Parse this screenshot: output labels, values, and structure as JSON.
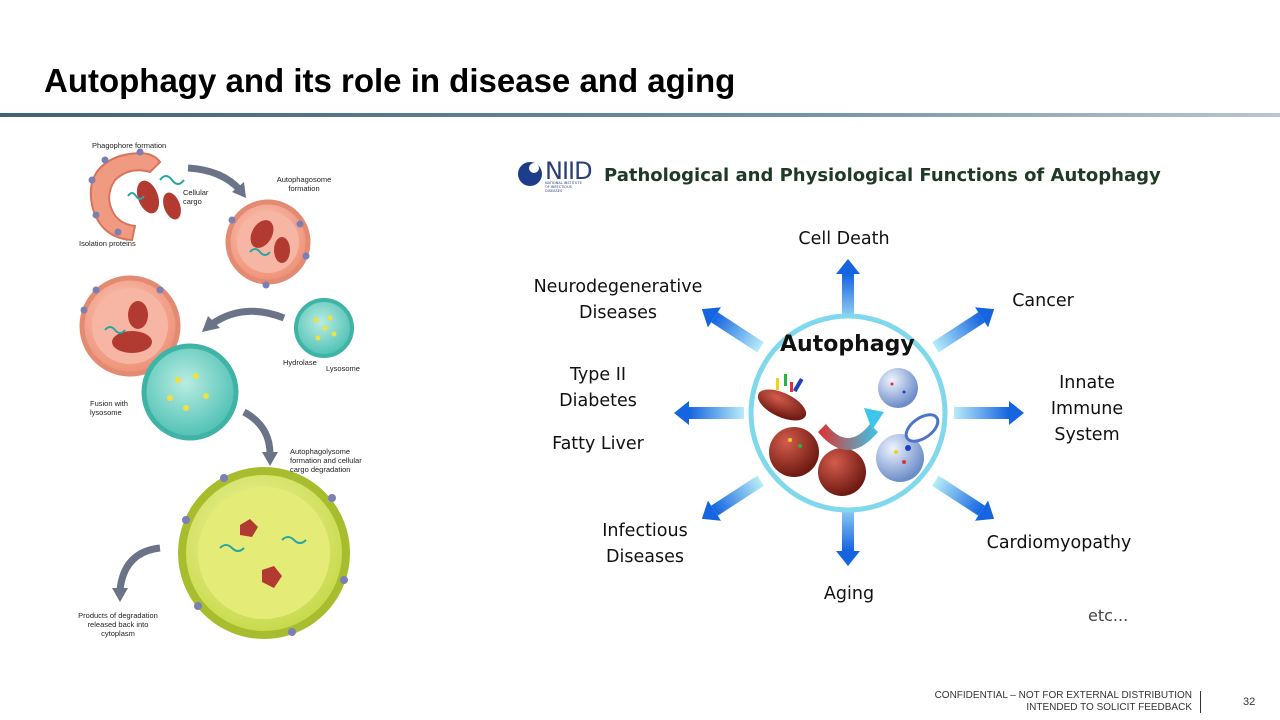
{
  "slide": {
    "title": "Autophagy and its role in disease and aging",
    "page_number": "32",
    "footer": {
      "line1": "CONFIDENTIAL – NOT FOR EXTERNAL DISTRIBUTION",
      "line2": "INTENDED TO SOLICIT FEEDBACK"
    }
  },
  "left_diagram": {
    "labels": {
      "phagophore": "Phagophore formation",
      "cellular_cargo": "Cellular cargo",
      "isolation_proteins": "Isolation proteins",
      "autophagosome": "Autophagosome formation",
      "hydrolase": "Hydrolase",
      "lysosome": "Lysosome",
      "fusion": "Fusion with lysosome",
      "autophagolysome": "Autophagolysome formation and cellular cargo degradation",
      "products": "Products of degradation released back into cytoplasm"
    }
  },
  "right_diagram": {
    "logo": {
      "name": "NIID",
      "subtitle": "NATIONAL INSTITUTE OF INFECTIOUS DISEASES"
    },
    "header": "Pathological and Physiological Functions of Autophagy",
    "center_label": "Autophagy",
    "outcomes": {
      "cell_death": "Cell Death",
      "cancer": "Cancer",
      "innate_1": "Innate",
      "innate_2": "Immune",
      "innate_3": "System",
      "cardiomyopathy": "Cardiomyopathy",
      "aging": "Aging",
      "infectious_1": "Infectious",
      "infectious_2": "Diseases",
      "type2_1": "Type II",
      "type2_2": "Diabetes",
      "fatty_liver": "Fatty Liver",
      "neuro_1": "Neurodegenerative",
      "neuro_2": "Diseases"
    },
    "etc": "etc...",
    "colors": {
      "arrow": "#1565e0",
      "arrow_light": "#5fd0f5",
      "ring": "#7fd8ec"
    }
  }
}
